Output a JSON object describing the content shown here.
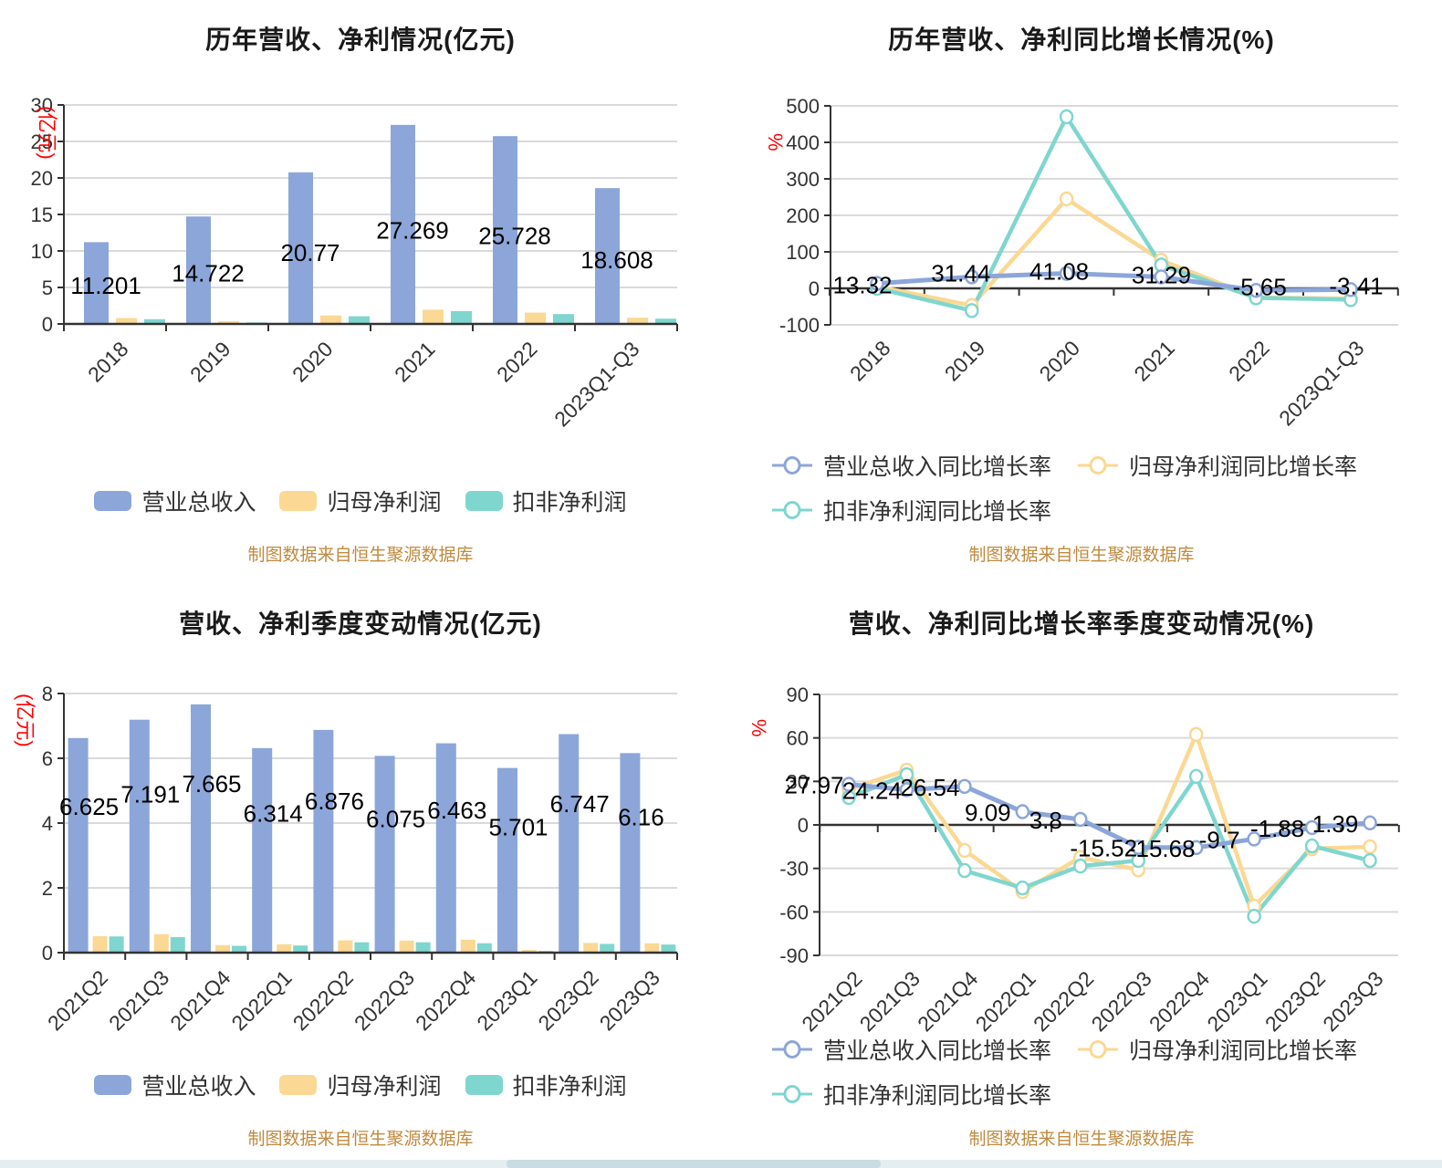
{
  "source_note": "制图数据来自恒生聚源数据库",
  "colors": {
    "revenue": "#8CA6D9",
    "profit": "#FBD893",
    "deducted": "#7FD6CF",
    "axis": "#333333",
    "grid": "#DADADA",
    "axis_name": "#FF0000",
    "value_label": "#000000",
    "source": "#C08A3E",
    "title": "#1a1a1a"
  },
  "chart_data": [
    {
      "type": "bar",
      "title": "历年营收、净利情况(亿元)",
      "ylabel": "(亿元)",
      "ylim": [
        0,
        30
      ],
      "ytick_step": 5,
      "grid": true,
      "legend_position": "bottom",
      "categories": [
        "2018",
        "2019",
        "2020",
        "2021",
        "2022",
        "2023Q1-Q3"
      ],
      "series": [
        {
          "name": "营业总收入",
          "color": "revenue",
          "labeled": true,
          "values": [
            11.201,
            14.722,
            20.77,
            27.269,
            25.728,
            18.608
          ]
        },
        {
          "name": "归母净利润",
          "color": "profit",
          "values": [
            0.8,
            0.35,
            1.15,
            1.95,
            1.55,
            0.85
          ]
        },
        {
          "name": "扣非净利润",
          "color": "deducted",
          "values": [
            0.65,
            0.2,
            1.05,
            1.75,
            1.35,
            0.72
          ]
        }
      ]
    },
    {
      "type": "line",
      "title": "历年营收、净利同比增长情况(%)",
      "ylabel": "%",
      "ylim": [
        -100,
        500
      ],
      "ytick_step": 100,
      "grid": true,
      "legend_position": "bottom",
      "categories": [
        "2018",
        "2019",
        "2020",
        "2021",
        "2022",
        "2023Q1-Q3"
      ],
      "series": [
        {
          "name": "营业总收入同比增长率",
          "color": "revenue",
          "labeled": true,
          "values": [
            13.32,
            31.44,
            41.08,
            31.29,
            -5.65,
            -3.41
          ]
        },
        {
          "name": "归母净利润同比增长率",
          "color": "profit",
          "values": [
            5,
            -47,
            245,
            77,
            -25,
            -28
          ]
        },
        {
          "name": "扣非净利润同比增长率",
          "color": "deducted",
          "values": [
            0,
            -61,
            470,
            64,
            -26,
            -31
          ]
        }
      ]
    },
    {
      "type": "bar",
      "title": "营收、净利季度变动情况(亿元)",
      "ylabel": "(亿元)",
      "ylim": [
        0,
        8
      ],
      "ytick_step": 2,
      "grid": true,
      "legend_position": "bottom",
      "categories": [
        "2021Q2",
        "2021Q3",
        "2021Q4",
        "2022Q1",
        "2022Q2",
        "2022Q3",
        "2022Q4",
        "2023Q1",
        "2023Q2",
        "2023Q3"
      ],
      "series": [
        {
          "name": "营业总收入",
          "color": "revenue",
          "labeled": true,
          "values": [
            6.625,
            7.191,
            7.665,
            6.314,
            6.876,
            6.075,
            6.463,
            5.701,
            6.747,
            6.16
          ]
        },
        {
          "name": "归母净利润",
          "color": "profit",
          "values": [
            0.51,
            0.57,
            0.23,
            0.26,
            0.38,
            0.37,
            0.4,
            0.08,
            0.3,
            0.29
          ]
        },
        {
          "name": "扣非净利润",
          "color": "deducted",
          "values": [
            0.5,
            0.48,
            0.21,
            0.22,
            0.32,
            0.32,
            0.29,
            0.05,
            0.27,
            0.25
          ]
        }
      ]
    },
    {
      "type": "line",
      "title": "营收、净利同比增长率季度变动情况(%)",
      "ylabel": "%",
      "ylim": [
        -90,
        90
      ],
      "ytick_step": 30,
      "grid": true,
      "legend_position": "bottom",
      "categories": [
        "2021Q2",
        "2021Q3",
        "2021Q4",
        "2022Q1",
        "2022Q2",
        "2022Q3",
        "2022Q4",
        "2023Q1",
        "2023Q2",
        "2023Q3"
      ],
      "series": [
        {
          "name": "营业总收入同比增长率",
          "color": "revenue",
          "labeled": true,
          "values": [
            27.97,
            24.24,
            26.54,
            9.09,
            3.8,
            -15.52,
            -15.68,
            -9.7,
            -1.88,
            1.39
          ]
        },
        {
          "name": "归母净利润同比增长率",
          "color": "profit",
          "values": [
            24.5,
            37.8,
            -17.6,
            -46,
            -22.4,
            -31,
            62.4,
            -56,
            -16.4,
            -15.1
          ]
        },
        {
          "name": "扣非净利润同比增长率",
          "color": "deducted",
          "values": [
            18.9,
            34.6,
            -31.5,
            -43.5,
            -28.4,
            -24.6,
            33.4,
            -63,
            -14.5,
            -24.6
          ]
        }
      ]
    }
  ]
}
